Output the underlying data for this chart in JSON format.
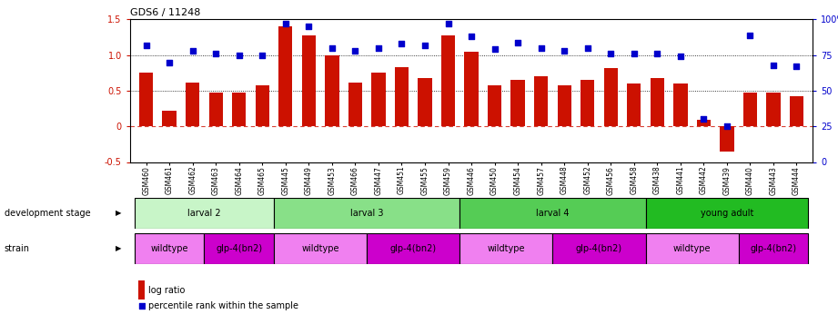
{
  "title": "GDS6 / 11248",
  "samples": [
    "GSM460",
    "GSM461",
    "GSM462",
    "GSM463",
    "GSM464",
    "GSM465",
    "GSM445",
    "GSM449",
    "GSM453",
    "GSM466",
    "GSM447",
    "GSM451",
    "GSM455",
    "GSM459",
    "GSM446",
    "GSM450",
    "GSM454",
    "GSM457",
    "GSM448",
    "GSM452",
    "GSM456",
    "GSM458",
    "GSM438",
    "GSM441",
    "GSM442",
    "GSM439",
    "GSM440",
    "GSM443",
    "GSM444"
  ],
  "log_ratio": [
    0.75,
    0.22,
    0.62,
    0.48,
    0.48,
    0.57,
    1.4,
    1.28,
    1.0,
    0.62,
    0.75,
    0.83,
    0.68,
    1.28,
    1.05,
    0.57,
    0.65,
    0.7,
    0.57,
    0.65,
    0.82,
    0.6,
    0.68,
    0.6,
    0.09,
    -0.35,
    0.48,
    0.48,
    0.42
  ],
  "percentile": [
    82,
    70,
    78,
    76,
    75,
    75,
    97,
    95,
    80,
    78,
    80,
    83,
    82,
    97,
    88,
    79,
    84,
    80,
    78,
    80,
    76,
    76,
    76,
    74,
    30,
    25,
    89,
    68,
    67
  ],
  "dev_stages": [
    {
      "label": "larval 2",
      "start": 0,
      "end": 5,
      "color": "#c8f5c8"
    },
    {
      "label": "larval 3",
      "start": 6,
      "end": 13,
      "color": "#88e088"
    },
    {
      "label": "larval 4",
      "start": 14,
      "end": 21,
      "color": "#55cc55"
    },
    {
      "label": "young adult",
      "start": 22,
      "end": 28,
      "color": "#22bb22"
    }
  ],
  "strains": [
    {
      "label": "wildtype",
      "start": 0,
      "end": 2,
      "color": "#f080f0"
    },
    {
      "label": "glp-4(bn2)",
      "start": 3,
      "end": 5,
      "color": "#cc00cc"
    },
    {
      "label": "wildtype",
      "start": 6,
      "end": 9,
      "color": "#f080f0"
    },
    {
      "label": "glp-4(bn2)",
      "start": 10,
      "end": 13,
      "color": "#cc00cc"
    },
    {
      "label": "wildtype",
      "start": 14,
      "end": 17,
      "color": "#f080f0"
    },
    {
      "label": "glp-4(bn2)",
      "start": 18,
      "end": 21,
      "color": "#cc00cc"
    },
    {
      "label": "wildtype",
      "start": 22,
      "end": 25,
      "color": "#f080f0"
    },
    {
      "label": "glp-4(bn2)",
      "start": 26,
      "end": 28,
      "color": "#cc00cc"
    }
  ],
  "bar_color": "#cc1100",
  "dot_color": "#0000cc",
  "ylim_left": [
    -0.5,
    1.5
  ],
  "ylim_right": [
    0,
    100
  ],
  "yticks_left": [
    -0.5,
    0.0,
    0.5,
    1.0,
    1.5
  ],
  "yticks_right": [
    0,
    25,
    50,
    75,
    100
  ]
}
